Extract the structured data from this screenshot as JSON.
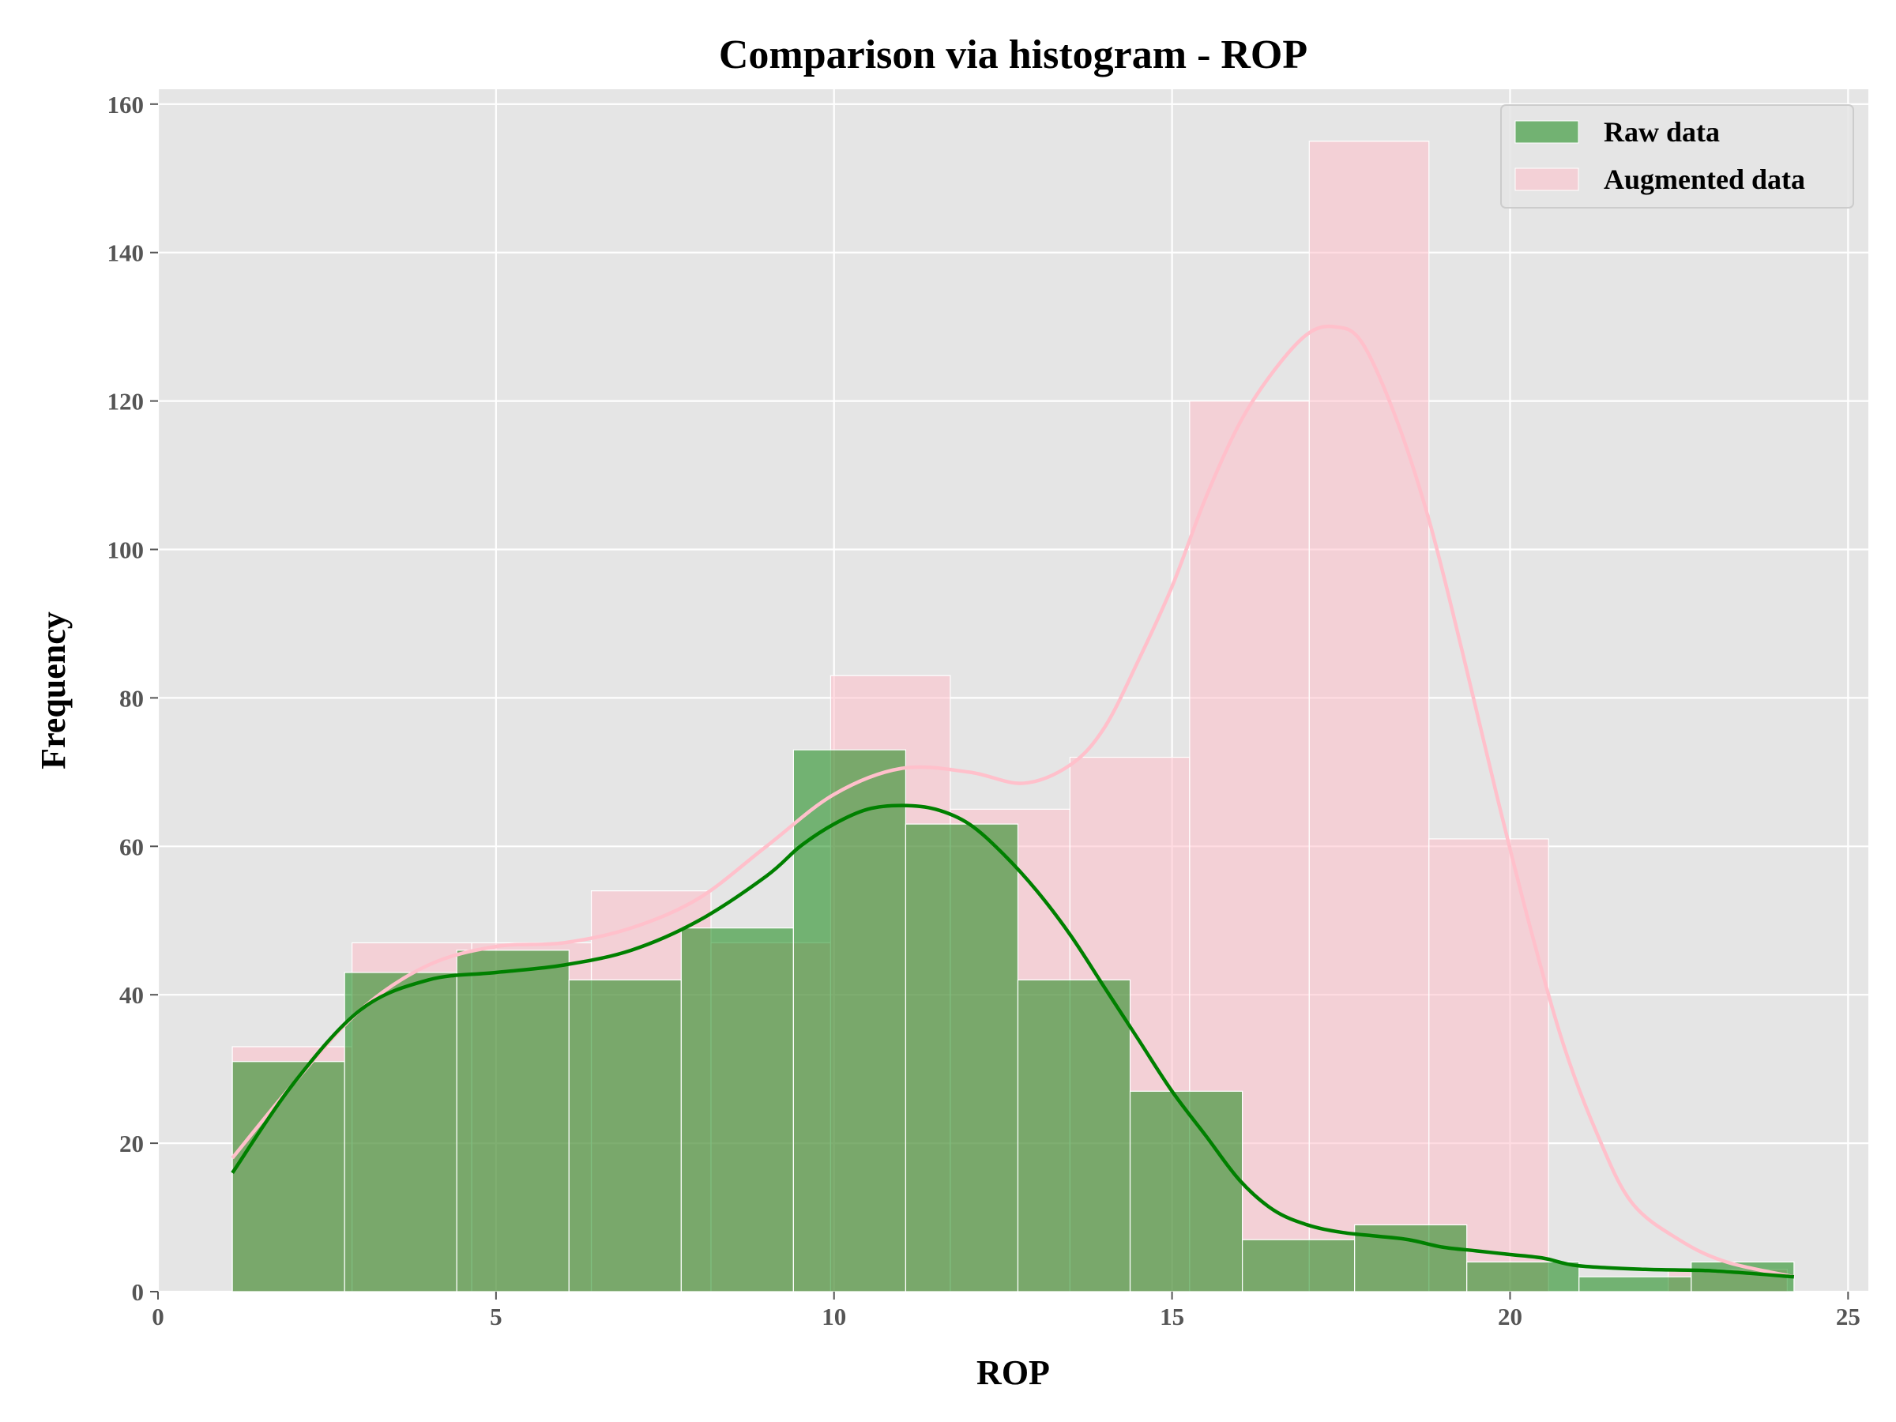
{
  "chart_data": {
    "type": "bar",
    "title": "Comparison via histogram - ROP",
    "xlabel": "ROP",
    "ylabel": "Frequency",
    "xlim": [
      0,
      25.3
    ],
    "ylim": [
      0,
      162
    ],
    "xticks": [
      0,
      5,
      10,
      15,
      20,
      25
    ],
    "yticks": [
      0,
      20,
      40,
      60,
      80,
      100,
      120,
      140,
      160
    ],
    "grid": true,
    "legend_position": "top-right",
    "series": [
      {
        "name": "Raw data",
        "color": "#008000",
        "kind": "histogram",
        "bin_edges": [
          1.1,
          2.76,
          4.42,
          6.08,
          7.74,
          9.4,
          11.06,
          12.72,
          14.38,
          16.04,
          17.7,
          19.36,
          21.02,
          22.68,
          24.2
        ],
        "counts": [
          31,
          43,
          46,
          42,
          49,
          73,
          63,
          42,
          27,
          7,
          9,
          4,
          2,
          4
        ],
        "kde": [
          [
            1.1,
            16
          ],
          [
            2.0,
            28
          ],
          [
            3.0,
            38
          ],
          [
            4.0,
            42
          ],
          [
            5.0,
            43
          ],
          [
            6.0,
            44
          ],
          [
            7.0,
            46
          ],
          [
            8.0,
            50
          ],
          [
            9.0,
            56
          ],
          [
            9.5,
            60
          ],
          [
            10.0,
            63
          ],
          [
            10.5,
            65
          ],
          [
            11.0,
            65.5
          ],
          [
            11.5,
            65
          ],
          [
            12.0,
            63
          ],
          [
            12.5,
            59
          ],
          [
            13.0,
            54
          ],
          [
            13.5,
            48
          ],
          [
            14.0,
            41
          ],
          [
            14.5,
            34
          ],
          [
            15.0,
            27
          ],
          [
            15.5,
            21
          ],
          [
            16.0,
            15
          ],
          [
            16.5,
            11
          ],
          [
            17.0,
            9
          ],
          [
            17.5,
            8
          ],
          [
            18.0,
            7.5
          ],
          [
            18.5,
            7
          ],
          [
            19.0,
            6
          ],
          [
            19.5,
            5.5
          ],
          [
            20.0,
            5
          ],
          [
            20.5,
            4.5
          ],
          [
            21.0,
            3.5
          ],
          [
            22.0,
            3
          ],
          [
            23.0,
            2.8
          ],
          [
            24.2,
            2
          ]
        ]
      },
      {
        "name": "Augmented data",
        "color": "#ffc0cb",
        "kind": "histogram",
        "bin_edges": [
          1.1,
          2.87,
          4.64,
          6.41,
          8.18,
          9.95,
          11.72,
          13.49,
          15.26,
          17.03,
          18.8,
          20.57,
          22.34,
          24.1
        ],
        "counts": [
          33,
          47,
          47,
          54,
          47,
          83,
          65,
          72,
          120,
          155,
          61,
          0,
          3
        ],
        "kde": [
          [
            1.1,
            18
          ],
          [
            2.0,
            28
          ],
          [
            3.0,
            38
          ],
          [
            4.0,
            44
          ],
          [
            5.0,
            46.5
          ],
          [
            6.0,
            47
          ],
          [
            7.0,
            49
          ],
          [
            8.0,
            53
          ],
          [
            9.0,
            60
          ],
          [
            10.0,
            67
          ],
          [
            11.0,
            70.5
          ],
          [
            12.0,
            70
          ],
          [
            12.8,
            68.5
          ],
          [
            13.5,
            71
          ],
          [
            14.0,
            76
          ],
          [
            14.5,
            85
          ],
          [
            15.0,
            95
          ],
          [
            15.5,
            107
          ],
          [
            16.0,
            117
          ],
          [
            16.5,
            124
          ],
          [
            17.0,
            129
          ],
          [
            17.4,
            130
          ],
          [
            17.8,
            128
          ],
          [
            18.3,
            118
          ],
          [
            18.8,
            104
          ],
          [
            19.3,
            86
          ],
          [
            19.8,
            67
          ],
          [
            20.3,
            49
          ],
          [
            20.8,
            33
          ],
          [
            21.3,
            21
          ],
          [
            21.8,
            12
          ],
          [
            22.5,
            7
          ],
          [
            23.2,
            4
          ],
          [
            24.2,
            2
          ]
        ]
      }
    ]
  }
}
